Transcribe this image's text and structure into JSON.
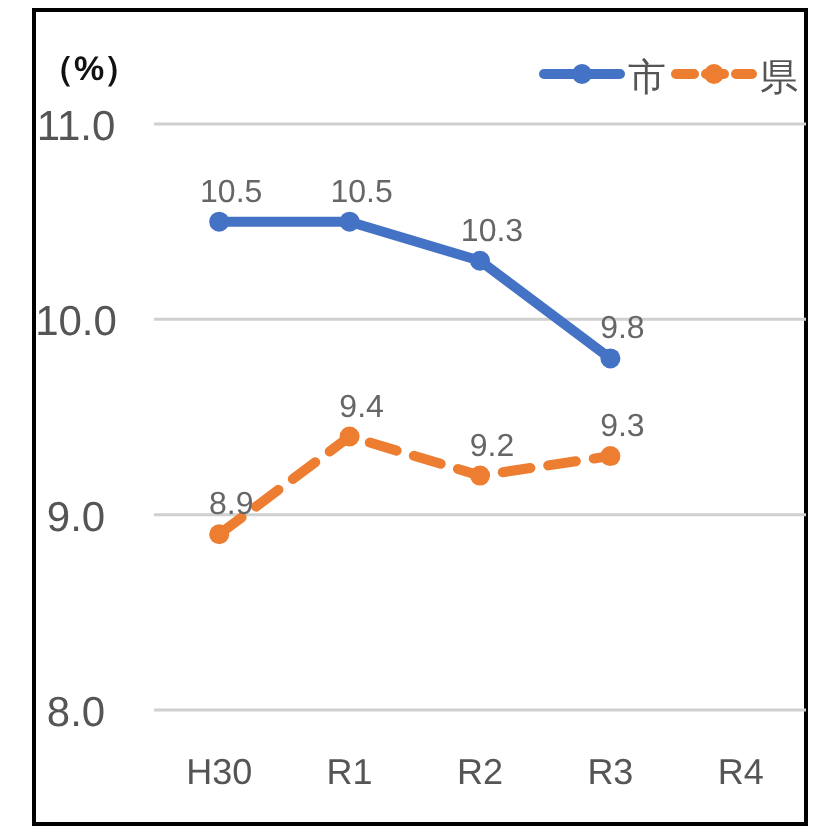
{
  "chart_data": {
    "type": "line",
    "ylabel": "（%）",
    "categories": [
      "H30",
      "R1",
      "R2",
      "R3",
      "R4"
    ],
    "series": [
      {
        "name": "市",
        "color": "#4472c4",
        "line_style": "solid",
        "values": [
          10.5,
          10.5,
          10.3,
          9.8,
          null
        ]
      },
      {
        "name": "県",
        "color": "#ed7d31",
        "line_style": "dashed",
        "values": [
          8.9,
          9.4,
          9.2,
          9.3,
          null
        ]
      }
    ],
    "ylim": [
      8,
      11
    ],
    "yticks": [
      {
        "value": 8,
        "label": "8.0"
      },
      {
        "value": 9,
        "label": "9.0"
      },
      {
        "value": 10,
        "label": "10.0"
      },
      {
        "value": 11,
        "label": "11.0"
      }
    ],
    "grid": "y",
    "legend": "top right",
    "marker": "circle",
    "data_labels": true
  }
}
